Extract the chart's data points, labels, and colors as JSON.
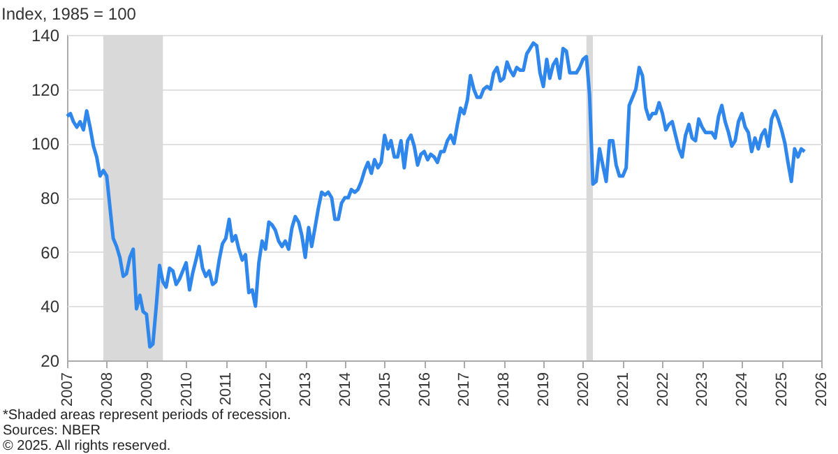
{
  "chart_data": {
    "type": "line",
    "ylabel": "Index, 1985 = 100",
    "x": [
      "2007-01",
      "2007-02",
      "2007-03",
      "2007-04",
      "2007-05",
      "2007-06",
      "2007-07",
      "2007-08",
      "2007-09",
      "2007-10",
      "2007-11",
      "2007-12",
      "2008-01",
      "2008-02",
      "2008-03",
      "2008-04",
      "2008-05",
      "2008-06",
      "2008-07",
      "2008-08",
      "2008-09",
      "2008-10",
      "2008-11",
      "2008-12",
      "2009-01",
      "2009-02",
      "2009-03",
      "2009-04",
      "2009-05",
      "2009-06",
      "2009-07",
      "2009-08",
      "2009-09",
      "2009-10",
      "2009-11",
      "2009-12",
      "2010-01",
      "2010-02",
      "2010-03",
      "2010-04",
      "2010-05",
      "2010-06",
      "2010-07",
      "2010-08",
      "2010-09",
      "2010-10",
      "2010-11",
      "2010-12",
      "2011-01",
      "2011-02",
      "2011-03",
      "2011-04",
      "2011-05",
      "2011-06",
      "2011-07",
      "2011-08",
      "2011-09",
      "2011-10",
      "2011-11",
      "2011-12",
      "2012-01",
      "2012-02",
      "2012-03",
      "2012-04",
      "2012-05",
      "2012-06",
      "2012-07",
      "2012-08",
      "2012-09",
      "2012-10",
      "2012-11",
      "2012-12",
      "2013-01",
      "2013-02",
      "2013-03",
      "2013-04",
      "2013-05",
      "2013-06",
      "2013-07",
      "2013-08",
      "2013-09",
      "2013-10",
      "2013-11",
      "2013-12",
      "2014-01",
      "2014-02",
      "2014-03",
      "2014-04",
      "2014-05",
      "2014-06",
      "2014-07",
      "2014-08",
      "2014-09",
      "2014-10",
      "2014-11",
      "2014-12",
      "2015-01",
      "2015-02",
      "2015-03",
      "2015-04",
      "2015-05",
      "2015-06",
      "2015-07",
      "2015-08",
      "2015-09",
      "2015-10",
      "2015-11",
      "2015-12",
      "2016-01",
      "2016-02",
      "2016-03",
      "2016-04",
      "2016-05",
      "2016-06",
      "2016-07",
      "2016-08",
      "2016-09",
      "2016-10",
      "2016-11",
      "2016-12",
      "2017-01",
      "2017-02",
      "2017-03",
      "2017-04",
      "2017-05",
      "2017-06",
      "2017-07",
      "2017-08",
      "2017-09",
      "2017-10",
      "2017-11",
      "2017-12",
      "2018-01",
      "2018-02",
      "2018-03",
      "2018-04",
      "2018-05",
      "2018-06",
      "2018-07",
      "2018-08",
      "2018-09",
      "2018-10",
      "2018-11",
      "2018-12",
      "2019-01",
      "2019-02",
      "2019-03",
      "2019-04",
      "2019-05",
      "2019-06",
      "2019-07",
      "2019-08",
      "2019-09",
      "2019-10",
      "2019-11",
      "2019-12",
      "2020-01",
      "2020-02",
      "2020-03",
      "2020-04",
      "2020-05",
      "2020-06",
      "2020-07",
      "2020-08",
      "2020-09",
      "2020-10",
      "2020-11",
      "2020-12",
      "2021-01",
      "2021-02",
      "2021-03",
      "2021-04",
      "2021-05",
      "2021-06",
      "2021-07",
      "2021-08",
      "2021-09",
      "2021-10",
      "2021-11",
      "2021-12",
      "2022-01",
      "2022-02",
      "2022-03",
      "2022-04",
      "2022-05",
      "2022-06",
      "2022-07",
      "2022-08",
      "2022-09",
      "2022-10",
      "2022-11",
      "2022-12",
      "2023-01",
      "2023-02",
      "2023-03",
      "2023-04",
      "2023-05",
      "2023-06",
      "2023-07",
      "2023-08",
      "2023-09",
      "2023-10",
      "2023-11",
      "2023-12",
      "2024-01",
      "2024-02",
      "2024-03",
      "2024-04",
      "2024-05",
      "2024-06",
      "2024-07",
      "2024-08",
      "2024-09",
      "2024-10",
      "2024-11",
      "2024-12",
      "2025-01",
      "2025-02",
      "2025-03",
      "2025-04",
      "2025-05",
      "2025-06",
      "2025-07",
      "2025-08"
    ],
    "series": [
      {
        "color": "#2f86eb",
        "values": [
          110,
          111,
          108,
          106,
          108,
          105,
          112,
          106,
          99,
          95,
          88,
          90,
          88,
          76,
          65,
          62,
          58,
          51,
          52,
          58,
          61,
          39,
          44,
          38,
          37,
          25,
          26,
          40,
          55,
          49,
          47,
          54,
          53,
          48,
          50,
          53,
          56,
          46,
          52,
          57,
          62,
          54,
          51,
          53,
          48,
          49,
          57,
          63,
          65,
          72,
          64,
          66,
          61,
          57,
          59,
          45,
          46,
          40,
          56,
          64,
          61,
          71,
          70,
          68,
          64,
          62,
          64,
          61,
          69,
          73,
          71,
          66,
          58,
          69,
          62,
          69,
          76,
          82,
          81,
          82,
          80,
          72,
          72,
          78,
          80,
          80,
          83,
          82,
          83,
          86,
          90,
          93,
          89,
          94,
          91,
          93,
          103,
          98,
          101,
          95,
          95,
          101,
          91,
          101,
          103,
          99,
          92,
          96,
          97,
          94,
          96,
          95,
          93,
          97,
          97,
          101,
          103,
          100,
          107,
          113,
          111,
          116,
          125,
          120,
          117,
          117,
          120,
          121,
          120,
          126,
          128,
          123,
          124,
          130,
          127,
          125,
          128,
          127,
          127,
          133,
          135,
          137,
          136,
          126,
          121,
          131,
          124,
          129,
          131,
          124,
          135,
          134,
          126,
          126,
          126,
          128,
          131,
          132,
          118,
          85,
          86,
          98,
          92,
          86,
          101,
          101,
          92,
          88,
          88,
          91,
          114,
          117,
          120,
          128,
          125,
          113,
          109,
          111,
          111,
          115,
          111,
          105,
          107,
          108,
          103,
          98,
          95,
          103,
          107,
          102,
          101,
          109,
          106,
          104,
          104,
          104,
          102,
          110,
          114,
          108,
          104,
          99,
          101,
          108,
          111,
          106,
          104,
          97,
          102,
          98,
          103,
          105,
          99,
          109,
          112,
          109,
          105,
          100,
          93,
          86,
          98,
          95,
          98,
          97
        ]
      }
    ],
    "xlim": [
      "2007-01-01",
      "2026-01-01"
    ],
    "xticks": [
      {
        "value": "2007-01-01",
        "label": "2007"
      },
      {
        "value": "2008-01-01",
        "label": "2008"
      },
      {
        "value": "2009-01-01",
        "label": "2009"
      },
      {
        "value": "2010-01-01",
        "label": "2010"
      },
      {
        "value": "2011-01-01",
        "label": "2011"
      },
      {
        "value": "2012-01-01",
        "label": "2012"
      },
      {
        "value": "2013-01-01",
        "label": "2013"
      },
      {
        "value": "2014-01-01",
        "label": "2014"
      },
      {
        "value": "2015-01-01",
        "label": "2015"
      },
      {
        "value": "2016-01-01",
        "label": "2016"
      },
      {
        "value": "2017-01-01",
        "label": "2017"
      },
      {
        "value": "2018-01-01",
        "label": "2018"
      },
      {
        "value": "2019-01-01",
        "label": "2019"
      },
      {
        "value": "2020-01-01",
        "label": "2020"
      },
      {
        "value": "2021-01-01",
        "label": "2021"
      },
      {
        "value": "2022-01-01",
        "label": "2022"
      },
      {
        "value": "2023-01-01",
        "label": "2023"
      },
      {
        "value": "2024-01-01",
        "label": "2024"
      },
      {
        "value": "2025-01-01",
        "label": "2025"
      },
      {
        "value": "2026-01-01",
        "label": "2026"
      }
    ],
    "ylim": [
      20,
      140
    ],
    "yticks": [
      20,
      40,
      60,
      80,
      100,
      120,
      140
    ],
    "bands": [
      {
        "axis": "x",
        "from": "2007-12",
        "to": "2009-06",
        "color": "#d9d9d9"
      },
      {
        "axis": "x",
        "from": "2020-02",
        "to": "2020-04",
        "color": "#d9d9d9"
      }
    ],
    "grid": "y",
    "line_style": "solid",
    "marker": "none",
    "annotations": [
      "*Shaded areas represent periods of recession.",
      "Sources: NBER",
      "© 2025. All rights reserved."
    ]
  }
}
